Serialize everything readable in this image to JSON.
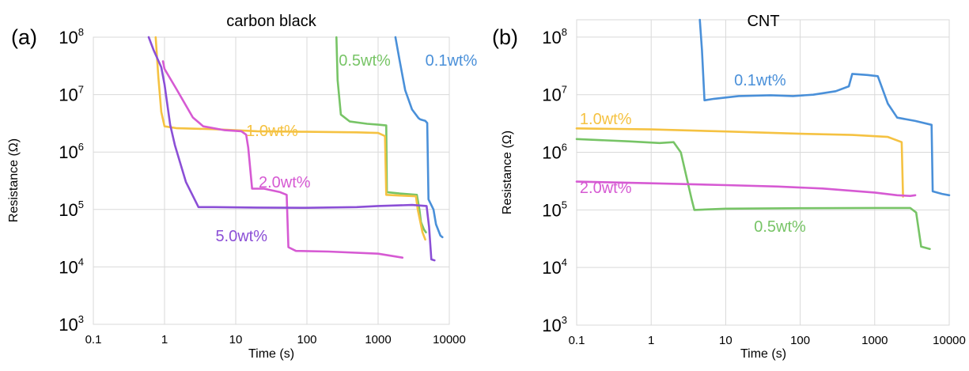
{
  "chart_data": [
    {
      "type": "line",
      "panel_tag": "(a)",
      "title": "carbon black",
      "xlabel": "Time (s)",
      "ylabel": "Resistance (Ω)",
      "x_scale": "log",
      "y_scale": "log",
      "xlim": [
        0.1,
        10000
      ],
      "ylim": [
        1000,
        100000000
      ],
      "grid": true,
      "x_ticks": [
        "0.1",
        "1",
        "10",
        "100",
        "1000",
        "10000"
      ],
      "y_ticks": [
        {
          "value": 1000,
          "base": "10",
          "exp": "3"
        },
        {
          "value": 10000,
          "base": "10",
          "exp": "4"
        },
        {
          "value": 100000,
          "base": "10",
          "exp": "5"
        },
        {
          "value": 1000000,
          "base": "10",
          "exp": "6"
        },
        {
          "value": 10000000,
          "base": "10",
          "exp": "7"
        },
        {
          "value": 100000000,
          "base": "10",
          "exp": "8"
        }
      ],
      "series": [
        {
          "name": "0.1wt%",
          "color": "#4a90d9",
          "label_at": [
            4600,
            32000000.0
          ],
          "points": [
            [
              1750,
              100000000.0
            ],
            [
              2000,
              40000000.0
            ],
            [
              2400,
              12000000.0
            ],
            [
              3000,
              5500000.0
            ],
            [
              3700,
              3900000.0
            ],
            [
              3900,
              3700000.0
            ],
            [
              4200,
              3600000.0
            ],
            [
              4600,
              3500000.0
            ],
            [
              4900,
              3200000.0
            ],
            [
              5100,
              150000.0
            ],
            [
              6000,
              100000.0
            ],
            [
              6500,
              55000.0
            ],
            [
              7500,
              35000.0
            ],
            [
              8000,
              33000.0
            ]
          ]
        },
        {
          "name": "0.5wt%",
          "color": "#77c466",
          "label_at": [
            280,
            32000000.0
          ],
          "points": [
            [
              260,
              100000000.0
            ],
            [
              270,
              18000000.0
            ],
            [
              300,
              4500000.0
            ],
            [
              400,
              3400000.0
            ],
            [
              700,
              3100000.0
            ],
            [
              1000,
              3000000.0
            ],
            [
              1300,
              2900000.0
            ],
            [
              1330,
              200000.0
            ],
            [
              2000,
              190000.0
            ],
            [
              3500,
              180000.0
            ],
            [
              3800,
              100000.0
            ],
            [
              4000,
              60000.0
            ],
            [
              4400,
              45000.0
            ],
            [
              4700,
              40000.0
            ]
          ]
        },
        {
          "name": "1.0wt%",
          "color": "#f5c242",
          "label_at": [
            14,
            1900000.0
          ],
          "points": [
            [
              0.75,
              100000000.0
            ],
            [
              0.82,
              20000000.0
            ],
            [
              0.9,
              5000000.0
            ],
            [
              1.0,
              2800000.0
            ],
            [
              1.5,
              2600000.0
            ],
            [
              5,
              2500000.0
            ],
            [
              20,
              2300000.0
            ],
            [
              100,
              2250000.0
            ],
            [
              500,
              2200000.0
            ],
            [
              1000,
              2150000.0
            ],
            [
              1250,
              1900000.0
            ],
            [
              1300,
              180000.0
            ],
            [
              2000,
              175000.0
            ],
            [
              3400,
              170000.0
            ],
            [
              3600,
              100000.0
            ],
            [
              4200,
              40000.0
            ],
            [
              4600,
              30000.0
            ]
          ]
        },
        {
          "name": "2.0wt%",
          "color": "#d65ad3",
          "label_at": [
            21,
            240000.0
          ],
          "points": [
            [
              0.95,
              38000000.0
            ],
            [
              1.0,
              28000000.0
            ],
            [
              1.5,
              12000000.0
            ],
            [
              2.5,
              4000000.0
            ],
            [
              3.5,
              2800000.0
            ],
            [
              7,
              2400000.0
            ],
            [
              12,
              2300000.0
            ],
            [
              14,
              2000000.0
            ],
            [
              15,
              1200000.0
            ],
            [
              17,
              230000.0
            ],
            [
              25,
              230000.0
            ],
            [
              42,
              200000.0
            ],
            [
              52,
              180000.0
            ],
            [
              55,
              22000.0
            ],
            [
              70,
              19000.0
            ],
            [
              200,
              18500.0
            ],
            [
              1000,
              17000.0
            ],
            [
              2200,
              14500.0
            ]
          ]
        },
        {
          "name": "5.0wt%",
          "color": "#8b4fd6",
          "label_at": [
            5.2,
            28000.0
          ],
          "points": [
            [
              0.6,
              100000000.0
            ],
            [
              0.7,
              60000000.0
            ],
            [
              0.9,
              30000000.0
            ],
            [
              1.0,
              15000000.0
            ],
            [
              1.2,
              3000000.0
            ],
            [
              1.4,
              1300000.0
            ],
            [
              2.0,
              300000.0
            ],
            [
              3.0,
              110000.0
            ],
            [
              5,
              110000.0
            ],
            [
              20,
              108000.0
            ],
            [
              100,
              107000.0
            ],
            [
              500,
              110000.0
            ],
            [
              1000,
              115000.0
            ],
            [
              3000,
              120000.0
            ],
            [
              4800,
              115000.0
            ],
            [
              5200,
              50000.0
            ],
            [
              5600,
              13500.0
            ],
            [
              6200,
              13000.0
            ]
          ]
        }
      ]
    },
    {
      "type": "line",
      "panel_tag": "(b)",
      "title": "CNT",
      "xlabel": "Time (s)",
      "ylabel": "Resistance (Ω)",
      "x_scale": "log",
      "y_scale": "log",
      "xlim": [
        0.1,
        10000
      ],
      "ylim": [
        1000,
        200000000
      ],
      "grid": true,
      "x_ticks": [
        "0.1",
        "1",
        "10",
        "100",
        "1000",
        "10000"
      ],
      "y_ticks": [
        {
          "value": 1000,
          "base": "10",
          "exp": "3"
        },
        {
          "value": 10000,
          "base": "10",
          "exp": "4"
        },
        {
          "value": 100000,
          "base": "10",
          "exp": "5"
        },
        {
          "value": 1000000,
          "base": "10",
          "exp": "6"
        },
        {
          "value": 10000000,
          "base": "10",
          "exp": "7"
        },
        {
          "value": 100000000,
          "base": "10",
          "exp": "8"
        }
      ],
      "series": [
        {
          "name": "0.1wt%",
          "color": "#4a90d9",
          "label_at": [
            13,
            14500000.0
          ],
          "points": [
            [
              4.5,
              200000000.0
            ],
            [
              4.8,
              60000000.0
            ],
            [
              5.2,
              8000000.0
            ],
            [
              7,
              8500000.0
            ],
            [
              15,
              9500000.0
            ],
            [
              40,
              9800000.0
            ],
            [
              80,
              9500000.0
            ],
            [
              150,
              10000000.0
            ],
            [
              300,
              11500000.0
            ],
            [
              450,
              14000000.0
            ],
            [
              500,
              23000000.0
            ],
            [
              800,
              22000000.0
            ],
            [
              1100,
              21000000.0
            ],
            [
              1500,
              7000000.0
            ],
            [
              2000,
              4000000.0
            ],
            [
              3500,
              3500000.0
            ],
            [
              5800,
              3000000.0
            ],
            [
              6000,
              210000.0
            ],
            [
              8000,
              190000.0
            ],
            [
              10000,
              180000.0
            ]
          ]
        },
        {
          "name": "0.5wt%",
          "color": "#77c466",
          "label_at": [
            24,
            42000.0
          ],
          "points": [
            [
              0.1,
              1700000.0
            ],
            [
              0.5,
              1550000.0
            ],
            [
              1.3,
              1450000.0
            ],
            [
              2.0,
              1500000.0
            ],
            [
              2.5,
              1000000.0
            ],
            [
              3.5,
              150000.0
            ],
            [
              3.8,
              100000.0
            ],
            [
              10,
              105000.0
            ],
            [
              100,
              107000.0
            ],
            [
              1000,
              108000.0
            ],
            [
              3000,
              108000.0
            ],
            [
              3600,
              90000.0
            ],
            [
              4200,
              23000.0
            ],
            [
              5500,
              21000.0
            ]
          ]
        },
        {
          "name": "1.0wt%",
          "color": "#f5c242",
          "label_at": [
            0.11,
            3100000.0
          ],
          "points": [
            [
              0.1,
              2600000.0
            ],
            [
              1,
              2500000.0
            ],
            [
              10,
              2300000.0
            ],
            [
              100,
              2100000.0
            ],
            [
              500,
              2000000.0
            ],
            [
              1500,
              1850000.0
            ],
            [
              2300,
              1500000.0
            ],
            [
              2400,
              170000.0
            ]
          ]
        },
        {
          "name": "2.0wt%",
          "color": "#d65ad3",
          "label_at": [
            0.11,
            195000.0
          ],
          "points": [
            [
              0.1,
              310000.0
            ],
            [
              1,
              290000.0
            ],
            [
              10,
              270000.0
            ],
            [
              50,
              255000.0
            ],
            [
              200,
              235000.0
            ],
            [
              1000,
              200000.0
            ],
            [
              2000,
              180000.0
            ],
            [
              3000,
              175000.0
            ],
            [
              3500,
              180000.0
            ]
          ]
        }
      ]
    }
  ]
}
